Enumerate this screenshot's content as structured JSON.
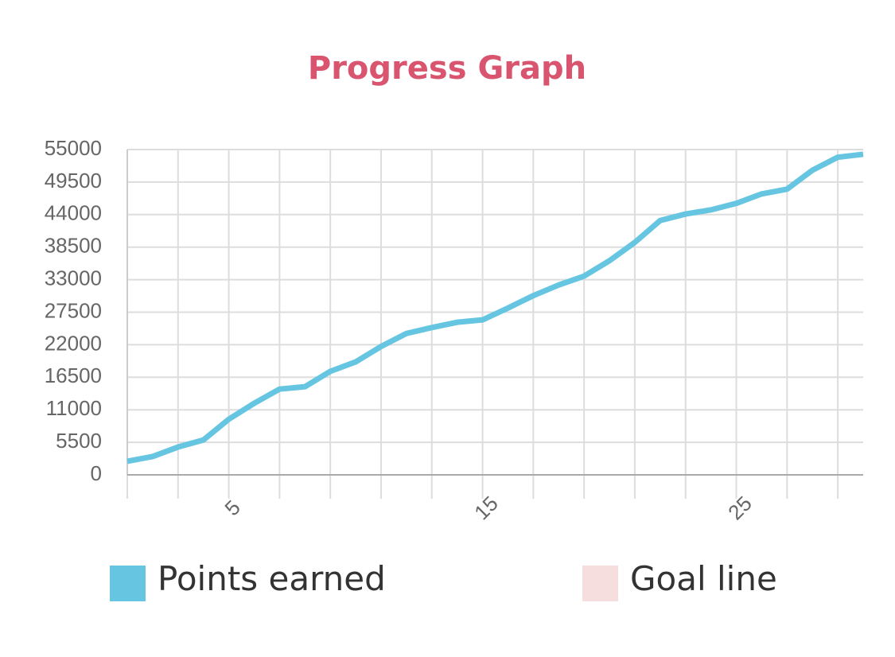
{
  "chart_data": {
    "type": "line",
    "title": "Progress Graph",
    "x": [
      1,
      2,
      3,
      4,
      5,
      6,
      7,
      8,
      9,
      10,
      11,
      12,
      13,
      14,
      15,
      16,
      17,
      18,
      19,
      20,
      21,
      22,
      23,
      24,
      25,
      26,
      27,
      28,
      29,
      30
    ],
    "series": [
      {
        "name": "Points earned",
        "color": "#66c5e0",
        "values": [
          2300,
          3100,
          4700,
          5900,
          9400,
          12100,
          14500,
          14900,
          17500,
          19100,
          21700,
          23900,
          24900,
          25800,
          26200,
          28200,
          30300,
          32100,
          33600,
          36200,
          39300,
          43000,
          44100,
          44800,
          45900,
          47500,
          48300,
          51500,
          53700,
          54200
        ]
      },
      {
        "name": "Goal line",
        "color": "#f7dede",
        "values": [
          null,
          null,
          null,
          null,
          null,
          null,
          null,
          null,
          null,
          null,
          null,
          null,
          null,
          null,
          null,
          null,
          null,
          null,
          null,
          null,
          null,
          null,
          null,
          null,
          null,
          null,
          null,
          null,
          null,
          null
        ]
      }
    ],
    "xlim": [
      1,
      30
    ],
    "xticks": [
      {
        "value": 1,
        "label": null
      },
      {
        "value": 3,
        "label": null
      },
      5,
      {
        "value": 7,
        "label": null
      },
      {
        "value": 9,
        "label": null
      },
      {
        "value": 11,
        "label": null
      },
      {
        "value": 13,
        "label": null
      },
      15,
      {
        "value": 17,
        "label": null
      },
      {
        "value": 19,
        "label": null
      },
      {
        "value": 21,
        "label": null
      },
      {
        "value": 23,
        "label": null
      },
      25,
      {
        "value": 27,
        "label": null
      },
      {
        "value": 29,
        "label": null
      }
    ],
    "ylim": [
      0,
      55000
    ],
    "yticks": [
      0,
      5500,
      11000,
      16500,
      22000,
      27500,
      33000,
      38500,
      44000,
      49500,
      55000
    ],
    "grid": true
  }
}
